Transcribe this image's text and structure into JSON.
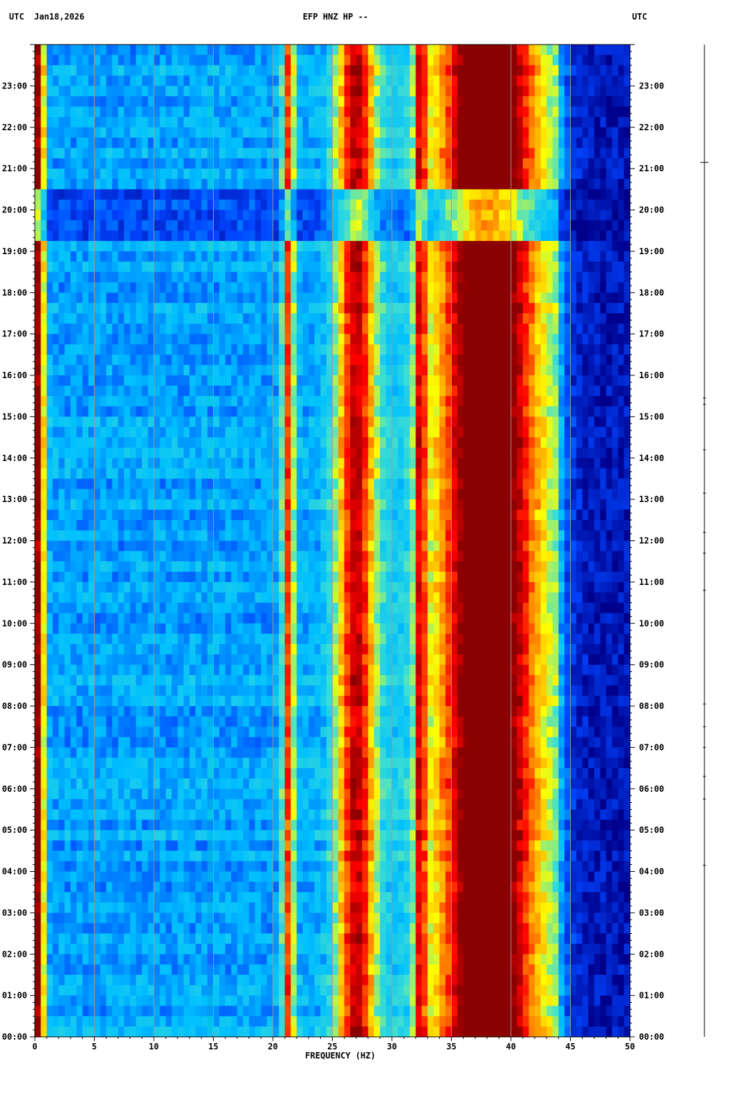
{
  "header": {
    "left_tz": "UTC",
    "date": "Jan18,2026",
    "title": "EFP HNZ HP --",
    "right_tz": "UTC"
  },
  "chart_data": {
    "type": "heatmap",
    "title": "EFP HNZ HP --",
    "xlabel": "FREQUENCY (HZ)",
    "ylabel": "",
    "xlim": [
      0,
      50
    ],
    "x_ticks": [
      0,
      5,
      10,
      15,
      20,
      25,
      30,
      35,
      40,
      45,
      50
    ],
    "x_tick_labels": [
      "0",
      "5",
      "10",
      "15",
      "20",
      "25",
      "30",
      "35",
      "40",
      "45",
      "50"
    ],
    "y_ticks_hours": [
      0,
      1,
      2,
      3,
      4,
      5,
      6,
      7,
      8,
      9,
      10,
      11,
      12,
      13,
      14,
      15,
      16,
      17,
      18,
      19,
      20,
      21,
      22,
      23
    ],
    "y_tick_labels": [
      "00:00",
      "01:00",
      "02:00",
      "03:00",
      "04:00",
      "05:00",
      "06:00",
      "07:00",
      "08:00",
      "09:00",
      "10:00",
      "11:00",
      "12:00",
      "13:00",
      "14:00",
      "15:00",
      "16:00",
      "17:00",
      "18:00",
      "19:00",
      "20:00",
      "21:00",
      "22:00",
      "23:00"
    ],
    "ylim_hours": [
      0,
      24
    ],
    "grid": true,
    "colormap": [
      "#00008b",
      "#0044ff",
      "#00bfff",
      "#40e0d0",
      "#ffff00",
      "#ff8c00",
      "#ff0000",
      "#8b0000"
    ],
    "bands_hz": [
      {
        "center": 0.3,
        "width": 0.5,
        "level": 0.75
      },
      {
        "center": 21.3,
        "width": 0.5,
        "level": 0.55
      },
      {
        "center": 27.0,
        "width": 1.6,
        "level": 0.65
      },
      {
        "center": 32.4,
        "width": 0.5,
        "level": 0.5
      },
      {
        "center": 38.0,
        "width": 4.0,
        "level": 0.9
      }
    ],
    "rolloff_hz": 44,
    "quiet_periods_hours": [
      [
        19.3,
        20.5
      ]
    ],
    "event_markers_hours": [
      21.15,
      15.45,
      15.3,
      14.2,
      13.15,
      12.2,
      11.7,
      10.8,
      8.05,
      7.5,
      7.0,
      6.3,
      5.75,
      4.15
    ]
  }
}
